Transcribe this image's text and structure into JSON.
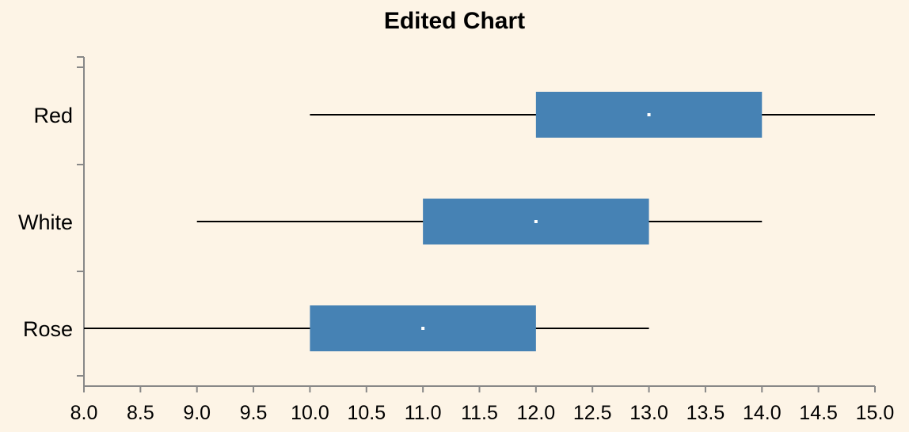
{
  "chart_data": {
    "type": "boxplot",
    "orientation": "horizontal",
    "title": "Edited Chart",
    "xlabel": "",
    "ylabel": "",
    "xlim": [
      8.0,
      15.0
    ],
    "x_ticks": [
      "8.0",
      "8.5",
      "9.0",
      "9.5",
      "10.0",
      "10.5",
      "11.0",
      "11.5",
      "12.0",
      "12.5",
      "13.0",
      "13.5",
      "14.0",
      "14.5",
      "15.0"
    ],
    "categories": [
      "Red",
      "White",
      "Rose"
    ],
    "series": [
      {
        "category": "Red",
        "min": 10.0,
        "q1": 12.0,
        "median": 13.0,
        "q3": 14.0,
        "max": 15.0
      },
      {
        "category": "White",
        "min": 9.0,
        "q1": 11.0,
        "median": 12.0,
        "q3": 13.0,
        "max": 14.0
      },
      {
        "category": "Rose",
        "min": 8.0,
        "q1": 10.0,
        "median": 11.0,
        "q3": 12.0,
        "max": 13.0
      }
    ],
    "box_color": "#4682b4",
    "median_color": "#ffffff",
    "grid": false,
    "legend": "none"
  }
}
